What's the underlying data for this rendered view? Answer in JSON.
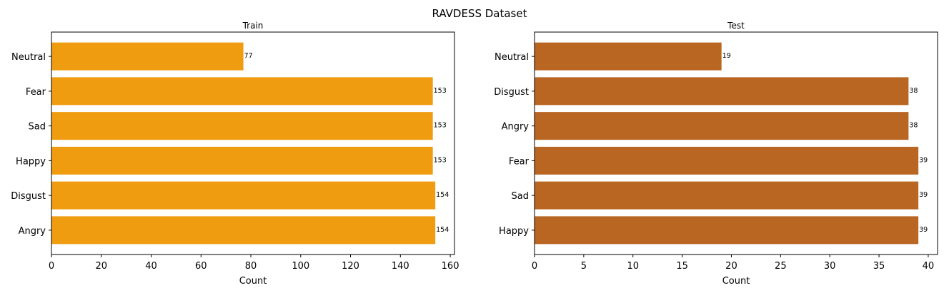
{
  "figure": {
    "suptitle": "RAVDESS Dataset"
  },
  "chart_data": [
    {
      "type": "bar",
      "orientation": "horizontal",
      "title": "Train",
      "xlabel": "Count",
      "ylabel": "",
      "categories": [
        "Angry",
        "Disgust",
        "Happy",
        "Sad",
        "Fear",
        "Neutral"
      ],
      "values": [
        154,
        154,
        153,
        153,
        153,
        77
      ],
      "data_labels": [
        "154",
        "154",
        "153",
        "153",
        "153",
        "77"
      ],
      "xlim": [
        0,
        161.7
      ],
      "xticks": [
        0,
        20,
        40,
        60,
        80,
        100,
        120,
        140,
        160
      ],
      "xtick_labels": [
        "0",
        "20",
        "40",
        "60",
        "80",
        "100",
        "120",
        "140",
        "160"
      ],
      "bar_color": "#ef9c10",
      "grid": false,
      "legend": "none"
    },
    {
      "type": "bar",
      "orientation": "horizontal",
      "title": "Test",
      "xlabel": "Count",
      "ylabel": "",
      "categories": [
        "Happy",
        "Sad",
        "Fear",
        "Angry",
        "Disgust",
        "Neutral"
      ],
      "values": [
        39,
        39,
        39,
        38,
        38,
        19
      ],
      "data_labels": [
        "39",
        "39",
        "39",
        "38",
        "38",
        "19"
      ],
      "xlim": [
        0,
        40.95
      ],
      "xticks": [
        0,
        5,
        10,
        15,
        20,
        25,
        30,
        35,
        40
      ],
      "xtick_labels": [
        "0",
        "5",
        "10",
        "15",
        "20",
        "25",
        "30",
        "35",
        "40"
      ],
      "bar_color": "#b86622",
      "grid": false,
      "legend": "none"
    }
  ]
}
